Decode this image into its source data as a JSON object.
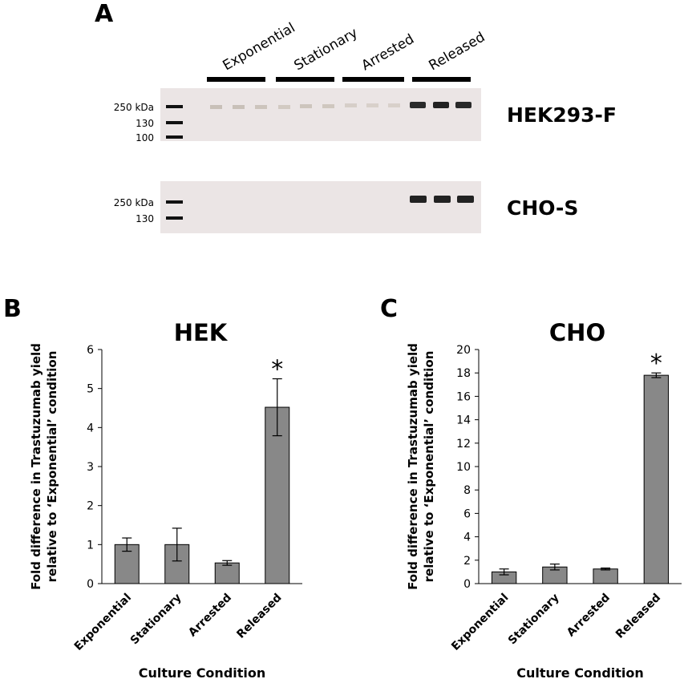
{
  "panels": {
    "a": "A",
    "b": "B",
    "c": "C"
  },
  "blot": {
    "conditions": [
      "Exponential",
      "Stationary",
      "Arrested",
      "Released"
    ],
    "top": {
      "label": "HEK293-F",
      "markers": [
        "250 kDa",
        "130",
        "100"
      ]
    },
    "bottom": {
      "label": "CHO-S",
      "markers": [
        "250 kDa",
        "130"
      ]
    }
  },
  "colors": {
    "bar": "#888888",
    "blot_bg": "#ebe5e5"
  },
  "chart_data": [
    {
      "type": "bar",
      "title": "HEK",
      "xlabel": "Culture Condition",
      "ylabel": [
        "Fold difference in Trastuzumab yield",
        "relative to ‘Exponential’ condition"
      ],
      "categories": [
        "Exponential",
        "Stationary",
        "Arrested",
        "Released"
      ],
      "values": [
        1.0,
        1.0,
        0.53,
        4.52
      ],
      "errors": [
        0.17,
        0.42,
        0.06,
        0.73
      ],
      "ylim": [
        0,
        6
      ],
      "yticks": [
        "0",
        "1",
        "2",
        "3",
        "4",
        "5",
        "6"
      ],
      "annotations": [
        "",
        "",
        "",
        "*"
      ]
    },
    {
      "type": "bar",
      "title": "CHO",
      "xlabel": "Culture Condition",
      "ylabel": [
        "Fold difference in Trastuzumab yield",
        "relative to ‘Exponential’ condition"
      ],
      "categories": [
        "Exponential",
        "Stationary",
        "Arrested",
        "Released"
      ],
      "values": [
        1.0,
        1.42,
        1.25,
        17.8
      ],
      "errors": [
        0.25,
        0.25,
        0.08,
        0.2
      ],
      "ylim": [
        0,
        20
      ],
      "yticks": [
        "0",
        "2",
        "4",
        "6",
        "8",
        "10",
        "12",
        "14",
        "16",
        "18",
        "20"
      ],
      "annotations": [
        "",
        "",
        "",
        "*"
      ]
    }
  ]
}
